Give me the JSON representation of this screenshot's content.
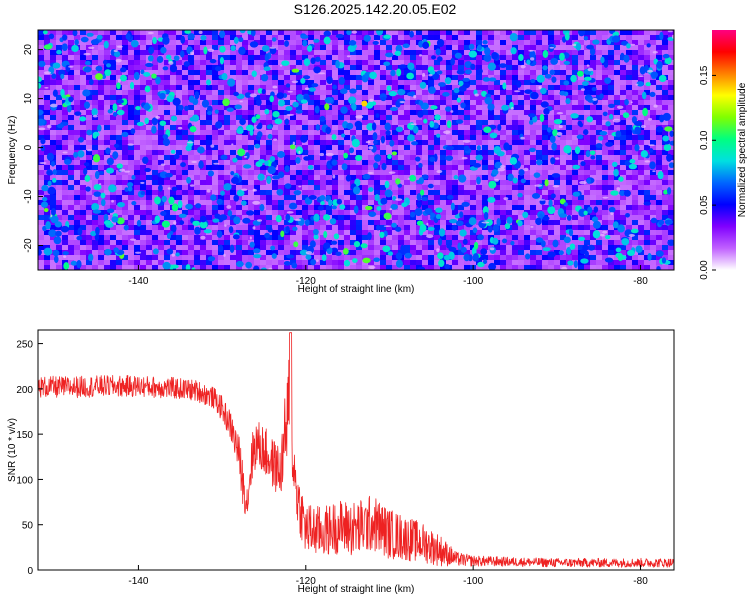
{
  "page_title": "S126.2025.142.20.05.E02",
  "chart_data": [
    {
      "type": "heatmap",
      "xlabel": "Height of straight line (km)",
      "ylabel": "Frequency (Hz)",
      "xlim": [
        -152,
        -76
      ],
      "ylim": [
        -25,
        24
      ],
      "x_ticks": [
        -140,
        -120,
        -100,
        -80
      ],
      "y_ticks": [
        -20,
        -10,
        0,
        10,
        20
      ],
      "grid": false,
      "colorbar": {
        "label": "Normalized spectral amplitude",
        "range": [
          0.0,
          0.185
        ],
        "ticks": [
          0.0,
          0.05,
          0.1,
          0.15
        ],
        "tick_labels": [
          "0.00",
          "0.05",
          "0.10",
          "0.15"
        ],
        "colors": [
          "#ffffff",
          "#c060ff",
          "#8000ff",
          "#0000ff",
          "#0066ff",
          "#00e0e0",
          "#00ff80",
          "#80ff00",
          "#ffff00",
          "#ff8000",
          "#ff0000",
          "#ff0080"
        ]
      },
      "description": "Speckled amplitude pattern: mostly blue/purple background (about 0.02 to 0.05) with scattered cyan and green spots (0.06 to 0.12); one yellow spot near x = -113 km, f = 9 Hz."
    },
    {
      "type": "line",
      "xlabel": "Height of straight line (km)",
      "ylabel": "SNR (10 * v/v)",
      "xlim": [
        -152,
        -76
      ],
      "ylim": [
        0,
        265
      ],
      "x_ticks": [
        -140,
        -120,
        -100,
        -80
      ],
      "y_ticks": [
        0,
        50,
        100,
        150,
        200,
        250
      ],
      "grid": false,
      "series": [
        {
          "color": "#ee2222",
          "x": [
            -152,
            -148,
            -144,
            -140,
            -136,
            -133,
            -131,
            -130,
            -129,
            -128,
            -127.5,
            -127,
            -126.5,
            -126,
            -125,
            -124,
            -123,
            -122.5,
            -122,
            -121.5,
            -121,
            -120,
            -118,
            -116,
            -114,
            -112,
            -110,
            -108,
            -106,
            -104,
            -102,
            -100,
            -95,
            -90,
            -85,
            -80,
            -76
          ],
          "y": [
            202,
            202,
            203,
            203,
            201,
            198,
            190,
            178,
            160,
            128,
            95,
            75,
            120,
            140,
            132,
            118,
            108,
            150,
            168,
            120,
            80,
            45,
            42,
            48,
            45,
            52,
            40,
            35,
            30,
            22,
            12,
            10,
            9,
            8,
            8,
            8,
            8
          ],
          "noise_amplitude": [
            12,
            12,
            12,
            12,
            12,
            12,
            12,
            14,
            16,
            22,
            25,
            22,
            28,
            28,
            28,
            28,
            30,
            40,
            80,
            30,
            32,
            30,
            28,
            30,
            32,
            32,
            28,
            25,
            22,
            18,
            8,
            6,
            5,
            5,
            5,
            5,
            5
          ]
        }
      ]
    }
  ]
}
